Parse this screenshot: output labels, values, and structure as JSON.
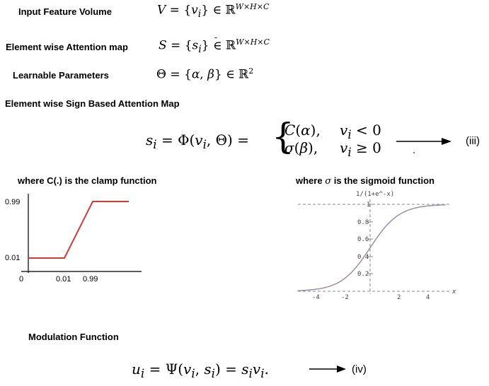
{
  "labels": {
    "input_feature_volume": "Input Feature Volume",
    "element_wise_attention_map": "Element wise Attention map",
    "learnable_parameters": "Learnable Parameters",
    "sign_based_attention_map": "Element wise Sign Based Attention Map",
    "clamp_caption": "where C(.) is the clamp function",
    "sigmoid_caption_pre": "where",
    "sigmoid_caption_sym": "σ",
    "sigmoid_caption_post": "is the sigmoid function",
    "modulation_function": "Modulation Function"
  },
  "equations": {
    "eq_iii_tag": "(iii)",
    "eq_iv_tag": "(iv)"
  },
  "clamp_plot": {
    "y_ticks": [
      "0.99",
      "0.01",
      "0"
    ],
    "x_ticks": [
      "0.01",
      "0.99"
    ],
    "line_color": "#d23a3a"
  },
  "sigmoid_plot": {
    "title": "1/(1+e^-x)",
    "y_ticks": [
      "1",
      "0.8",
      "0.6",
      "0.4",
      "0.2"
    ],
    "x_ticks": [
      "-4",
      "-2",
      "2",
      "4"
    ],
    "x_axis_label": "x",
    "curve_color": "#9b8fa6"
  }
}
